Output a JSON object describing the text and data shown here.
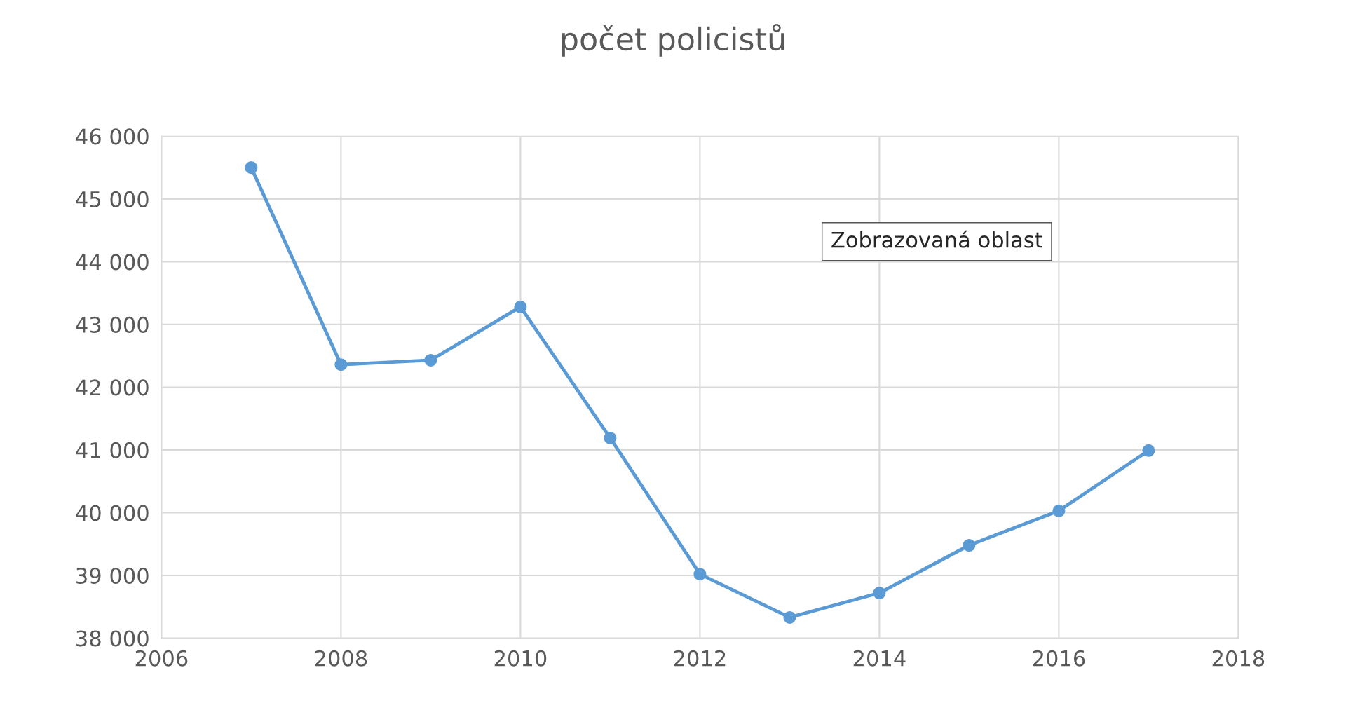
{
  "chart_data": {
    "type": "line",
    "title": "počet policistů",
    "x": [
      2007,
      2008,
      2009,
      2010,
      2011,
      2012,
      2013,
      2014,
      2015,
      2016,
      2017
    ],
    "series": [
      {
        "color": "#5b9bd5",
        "values": [
          45500,
          42360,
          42430,
          43280,
          41190,
          39020,
          38330,
          38720,
          39480,
          40030,
          40990
        ]
      }
    ],
    "xlim": [
      2006,
      2018
    ],
    "xticks": [
      2006,
      2008,
      2010,
      2012,
      2014,
      2016,
      2018
    ],
    "ylim": [
      38000,
      46000
    ],
    "yticks": [
      {
        "value": 38000,
        "label": "38 000"
      },
      {
        "value": 39000,
        "label": "39 000"
      },
      {
        "value": 40000,
        "label": "40 000"
      },
      {
        "value": 41000,
        "label": "41 000"
      },
      {
        "value": 42000,
        "label": "42 000"
      },
      {
        "value": 43000,
        "label": "43 000"
      },
      {
        "value": 44000,
        "label": "44 000"
      },
      {
        "value": 45000,
        "label": "45 000"
      },
      {
        "value": 46000,
        "label": "46 000"
      }
    ],
    "grid": true,
    "marker": "circle",
    "line_style": "solid",
    "annotations": [
      "Zobrazovaná oblast"
    ]
  }
}
